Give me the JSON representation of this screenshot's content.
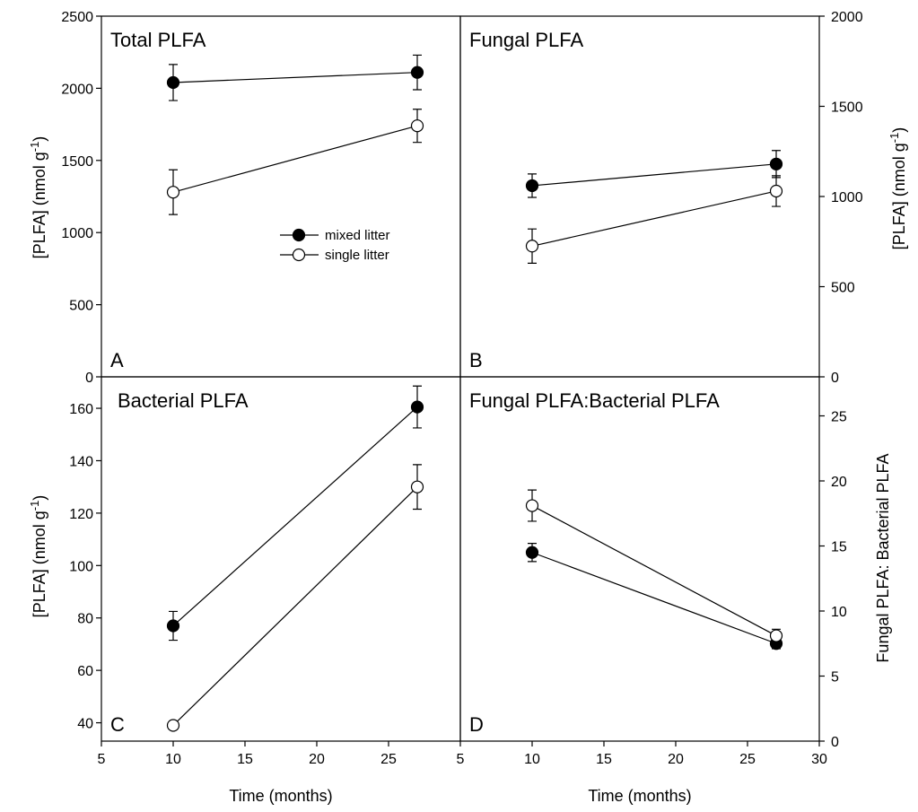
{
  "legend": {
    "mixed_label": "mixed litter",
    "single_label": "single litter"
  },
  "axis_titles": {
    "x_left": "Time (months)",
    "x_right": "Time (months)",
    "y_top_left": "[PLFA] (nmol g-1)",
    "y_top_right": "[PLFA] (nmol g-1)",
    "y_bottom_left": "[PLFA] (nmol g-1)",
    "y_bottom_right": "Fungal PLFA: Bacterial PLFA"
  },
  "chart_data": [
    {
      "type": "line",
      "panel": "A",
      "title": "Total PLFA",
      "xlabel": "",
      "ylabel": "[PLFA] (nmol g-1)",
      "xlim": [
        5,
        30
      ],
      "ylim": [
        0,
        2500
      ],
      "yticks": [
        0,
        500,
        1000,
        1500,
        2000,
        2500
      ],
      "ytick_labels": [
        "0",
        "500",
        "1000",
        "1500",
        "2000",
        "2500"
      ],
      "series": [
        {
          "name": "mixed litter",
          "marker": "filled",
          "x": [
            10,
            27
          ],
          "y": [
            2040,
            2110
          ],
          "err": [
            125,
            120
          ]
        },
        {
          "name": "single litter",
          "marker": "open",
          "x": [
            10,
            27
          ],
          "y": [
            1280,
            1740
          ],
          "err": [
            155,
            115
          ]
        }
      ]
    },
    {
      "type": "line",
      "panel": "B",
      "title": "Fungal PLFA",
      "xlabel": "",
      "ylabel": "[PLFA] (nmol g-1)",
      "xlim": [
        5,
        30
      ],
      "ylim": [
        0,
        2000
      ],
      "yticks": [
        0,
        500,
        1000,
        1500,
        2000
      ],
      "ytick_labels": [
        "0",
        "500",
        "1000",
        "1500",
        "2000"
      ],
      "series": [
        {
          "name": "mixed litter",
          "marker": "filled",
          "x": [
            10,
            27
          ],
          "y": [
            1060,
            1180
          ],
          "err": [
            65,
            75
          ]
        },
        {
          "name": "single litter",
          "marker": "open",
          "x": [
            10,
            27
          ],
          "y": [
            725,
            1030
          ],
          "err": [
            95,
            85
          ]
        }
      ]
    },
    {
      "type": "line",
      "panel": "C",
      "title": "Bacterial PLFA",
      "xlabel": "Time (months)",
      "ylabel": "[PLFA] (nmol g-1)",
      "xlim": [
        5,
        30
      ],
      "ylim": [
        33,
        172
      ],
      "xticks": [
        5,
        10,
        15,
        20,
        25
      ],
      "xtick_labels": [
        "5",
        "10",
        "15",
        "20",
        "25"
      ],
      "yticks": [
        40,
        60,
        80,
        100,
        120,
        140,
        160
      ],
      "ytick_labels": [
        "40",
        "60",
        "80",
        "100",
        "120",
        "140",
        "160"
      ],
      "series": [
        {
          "name": "mixed litter",
          "marker": "filled",
          "x": [
            10,
            27
          ],
          "y": [
            77,
            160.5
          ],
          "err": [
            5.5,
            8
          ]
        },
        {
          "name": "single litter",
          "marker": "open",
          "x": [
            10,
            27
          ],
          "y": [
            39,
            130
          ],
          "err": [
            0,
            8.5
          ]
        }
      ]
    },
    {
      "type": "line",
      "panel": "D",
      "title": "Fungal PLFA:Bacterial PLFA",
      "xlabel": "Time (months)",
      "ylabel": "Fungal PLFA: Bacterial PLFA",
      "xlim": [
        5,
        30
      ],
      "ylim": [
        0,
        28
      ],
      "xticks": [
        5,
        10,
        15,
        20,
        25,
        30
      ],
      "xtick_labels": [
        "5",
        "10",
        "15",
        "20",
        "25",
        "30"
      ],
      "yticks": [
        0,
        5,
        10,
        15,
        20,
        25
      ],
      "ytick_labels": [
        "0",
        "5",
        "10",
        "15",
        "20",
        "25"
      ],
      "series": [
        {
          "name": "mixed litter",
          "marker": "filled",
          "x": [
            10,
            27
          ],
          "y": [
            14.5,
            7.5
          ],
          "err": [
            0.7,
            0.4
          ]
        },
        {
          "name": "single litter",
          "marker": "open",
          "x": [
            10,
            27
          ],
          "y": [
            18.1,
            8.1
          ],
          "err": [
            1.2,
            0.5
          ]
        }
      ]
    }
  ]
}
